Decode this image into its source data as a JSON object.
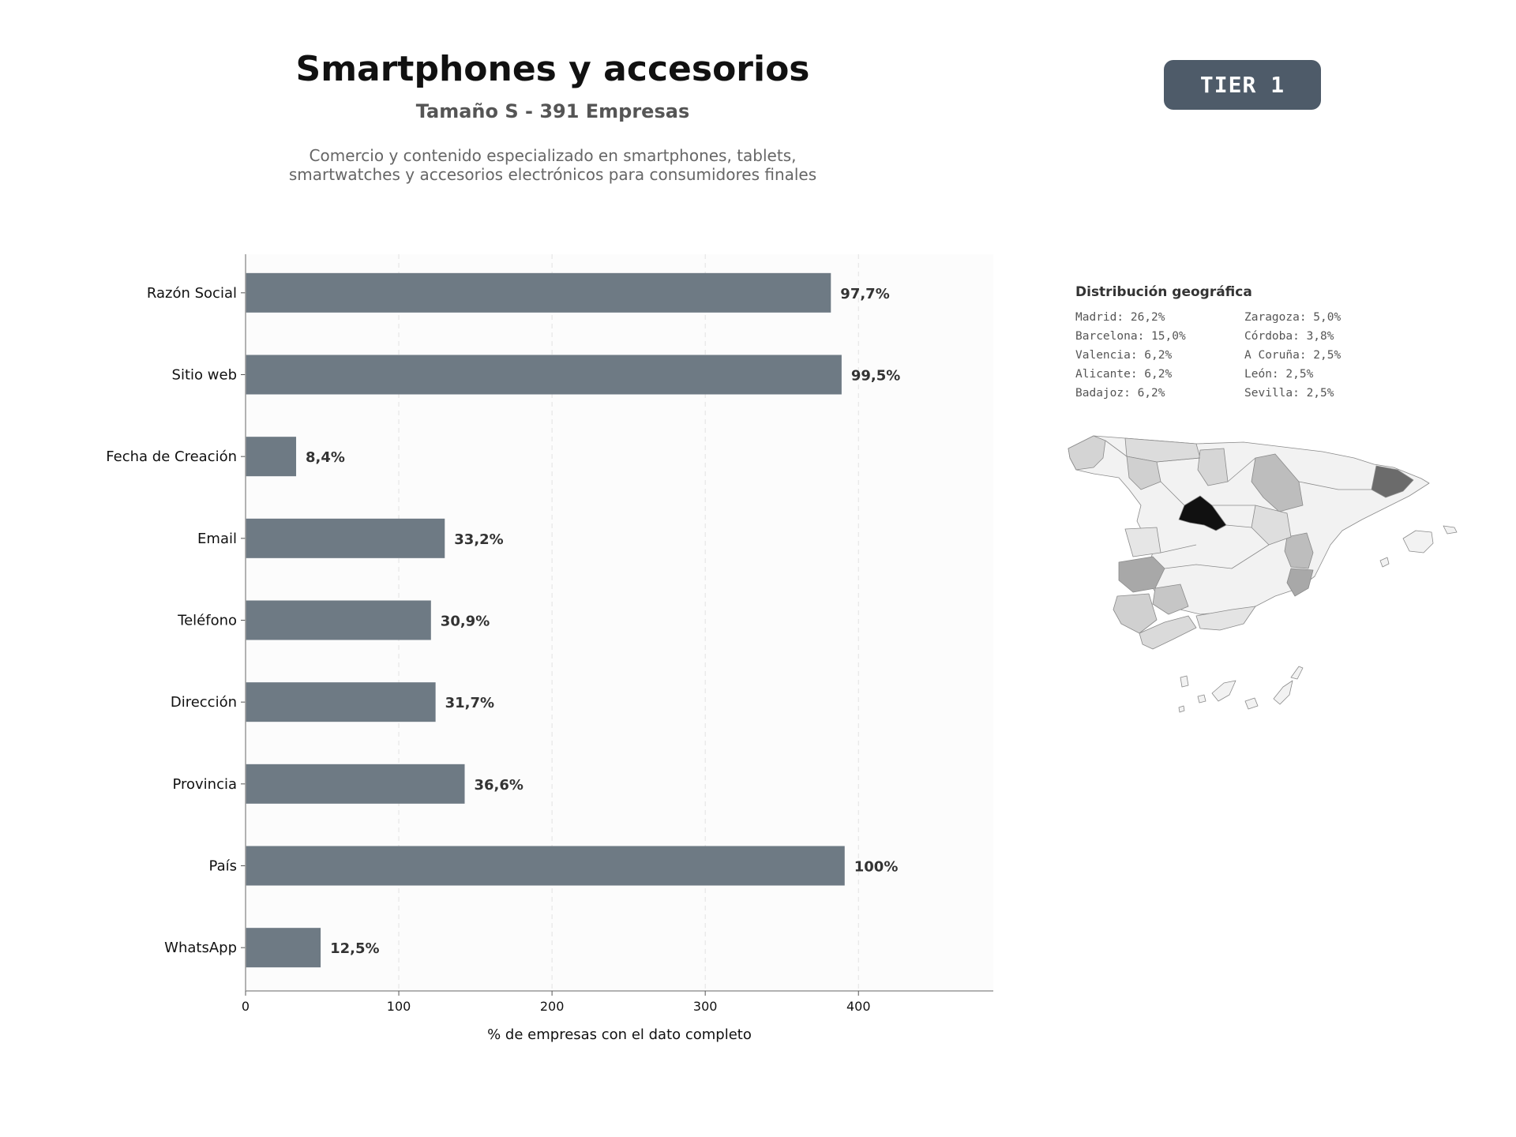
{
  "header": {
    "title": "Smartphones y accesorios",
    "subtitle": "Tamaño S - 391 Empresas",
    "description_lines": [
      "Comercio y contenido especializado en smartphones, tablets,",
      "smartwatches y accesorios electrónicos para consumidores finales"
    ],
    "tier_badge": "TIER 1"
  },
  "chart_data": {
    "type": "bar",
    "orientation": "horizontal",
    "categories": [
      "Razón Social",
      "Sitio web",
      "Fecha de Creación",
      "Email",
      "Teléfono",
      "Dirección",
      "Provincia",
      "País",
      "WhatsApp"
    ],
    "values": [
      382,
      389,
      33,
      130,
      121,
      124,
      143,
      391,
      49
    ],
    "labels": [
      "97,7%",
      "99,5%",
      "8,4%",
      "33,2%",
      "30,9%",
      "31,7%",
      "36,6%",
      "100%",
      "12,5%"
    ],
    "xlabel": "% de empresas con el dato completo",
    "ylabel": "",
    "xlim": [
      0,
      488
    ],
    "xticks": [
      0,
      100,
      200,
      300,
      400
    ],
    "grid": "vertical-dashed",
    "bar_color": "#6e7a84"
  },
  "geo": {
    "title": "Distribución geográfica",
    "items": [
      "Madrid: 26,2%",
      "Zaragoza: 5,0%",
      "Barcelona: 15,0%",
      "Córdoba: 3,8%",
      "Valencia: 6,2%",
      "A Coruña: 2,5%",
      "Alicante: 6,2%",
      "León: 2,5%",
      "Badajoz: 6,2%",
      "Sevilla: 2,5%"
    ]
  }
}
